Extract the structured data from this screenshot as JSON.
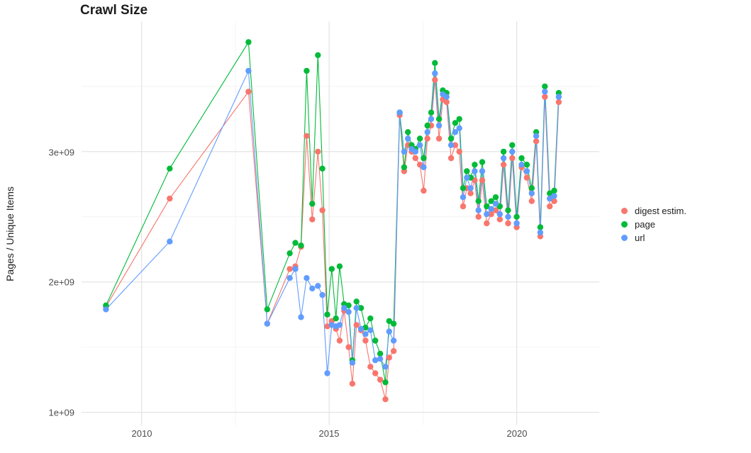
{
  "title": "Crawl Size",
  "y_axis": {
    "label": "Pages / Unique Items",
    "ticks": [
      "1e+09",
      "2e+09",
      "3e+09"
    ]
  },
  "x_axis": {
    "label": "",
    "ticks": [
      "2010",
      "2015",
      "2020"
    ]
  },
  "legend": {
    "position": "right",
    "items": [
      {
        "label": "digest estim.",
        "color": "#F8766D"
      },
      {
        "label": "page",
        "color": "#00BA38"
      },
      {
        "label": "url",
        "color": "#619CFF"
      }
    ]
  },
  "chart_data": {
    "type": "line",
    "title": "Crawl Size",
    "xlabel": "",
    "ylabel": "Pages / Unique Items",
    "values_unit": "pages/items in billions (1e9)",
    "y_tick_values": [
      1,
      2,
      3
    ],
    "y_tick_labels": [
      "1e+09",
      "2e+09",
      "3e+09"
    ],
    "x_tick_values": [
      2010,
      2015,
      2020
    ],
    "x_tick_labels": [
      "2010",
      "2015",
      "2020"
    ],
    "xlim": [
      2008.4,
      2022.2
    ],
    "ylim": [
      0.9,
      4.0
    ],
    "grid": {
      "x_major": [
        2010,
        2015,
        2020
      ],
      "x_minor": [
        2012.5,
        2017.5
      ],
      "y_major": [
        1,
        2,
        3
      ],
      "y_minor": [
        1.5,
        2.5,
        3.5
      ]
    },
    "legend_position": "right",
    "markers": true,
    "x": [
      2009.05,
      2010.75,
      2012.85,
      2013.35,
      2013.95,
      2014.1,
      2014.25,
      2014.4,
      2014.55,
      2014.7,
      2014.82,
      2014.95,
      2015.07,
      2015.18,
      2015.28,
      2015.4,
      2015.52,
      2015.62,
      2015.73,
      2015.85,
      2015.97,
      2016.1,
      2016.23,
      2016.36,
      2016.5,
      2016.6,
      2016.72,
      2016.88,
      2017.0,
      2017.1,
      2017.2,
      2017.3,
      2017.42,
      2017.52,
      2017.62,
      2017.72,
      2017.82,
      2017.93,
      2018.03,
      2018.13,
      2018.25,
      2018.36,
      2018.47,
      2018.57,
      2018.67,
      2018.77,
      2018.88,
      2018.98,
      2019.08,
      2019.2,
      2019.32,
      2019.44,
      2019.55,
      2019.65,
      2019.77,
      2019.88,
      2020.0,
      2020.13,
      2020.27,
      2020.4,
      2020.52,
      2020.63,
      2020.75,
      2020.88,
      2021.0,
      2021.12
    ],
    "series": [
      {
        "name": "digest estim.",
        "color": "#F8766D",
        "values": [
          1.81,
          2.64,
          3.46,
          1.68,
          2.1,
          2.12,
          2.27,
          3.12,
          2.48,
          3.0,
          2.55,
          1.66,
          1.7,
          1.64,
          1.55,
          1.78,
          1.5,
          1.22,
          1.67,
          1.63,
          1.55,
          1.35,
          1.3,
          1.25,
          1.1,
          1.42,
          1.47,
          3.28,
          2.85,
          3.05,
          3.0,
          2.95,
          2.9,
          2.7,
          3.1,
          3.2,
          3.55,
          3.1,
          3.4,
          3.38,
          2.95,
          3.05,
          3.0,
          2.58,
          2.72,
          2.68,
          2.78,
          2.5,
          2.78,
          2.45,
          2.52,
          2.55,
          2.48,
          2.9,
          2.45,
          2.95,
          2.42,
          2.88,
          2.8,
          2.62,
          3.08,
          2.35,
          3.42,
          2.58,
          2.62,
          3.38
        ]
      },
      {
        "name": "page",
        "color": "#00BA38",
        "values": [
          1.82,
          2.87,
          3.84,
          1.79,
          2.22,
          2.3,
          2.28,
          3.62,
          2.6,
          3.74,
          2.87,
          1.75,
          2.1,
          1.72,
          2.12,
          1.83,
          1.82,
          1.4,
          1.85,
          1.8,
          1.65,
          1.72,
          1.55,
          1.45,
          1.23,
          1.7,
          1.68,
          3.3,
          2.88,
          3.15,
          3.05,
          3.02,
          3.1,
          2.95,
          3.2,
          3.3,
          3.68,
          3.25,
          3.47,
          3.45,
          3.1,
          3.22,
          3.25,
          2.72,
          2.85,
          2.8,
          2.9,
          2.62,
          2.92,
          2.58,
          2.62,
          2.65,
          2.58,
          3.0,
          2.55,
          3.05,
          2.5,
          2.95,
          2.9,
          2.72,
          3.15,
          2.42,
          3.5,
          2.68,
          2.7,
          3.45
        ]
      },
      {
        "name": "url",
        "color": "#619CFF",
        "values": [
          1.79,
          2.31,
          3.62,
          1.68,
          2.03,
          2.1,
          1.73,
          2.03,
          1.95,
          1.97,
          1.9,
          1.3,
          1.67,
          1.66,
          1.67,
          1.8,
          1.77,
          1.38,
          1.8,
          1.64,
          1.6,
          1.63,
          1.4,
          1.41,
          1.35,
          1.62,
          1.55,
          3.3,
          3.0,
          3.1,
          3.02,
          3.0,
          3.05,
          2.88,
          3.15,
          3.25,
          3.6,
          3.2,
          3.44,
          3.42,
          3.05,
          3.15,
          3.18,
          2.65,
          2.8,
          2.72,
          2.85,
          2.55,
          2.85,
          2.52,
          2.56,
          2.6,
          2.52,
          2.95,
          2.5,
          3.0,
          2.45,
          2.9,
          2.85,
          2.68,
          3.12,
          2.38,
          3.46,
          2.64,
          2.66,
          3.42
        ]
      }
    ]
  }
}
